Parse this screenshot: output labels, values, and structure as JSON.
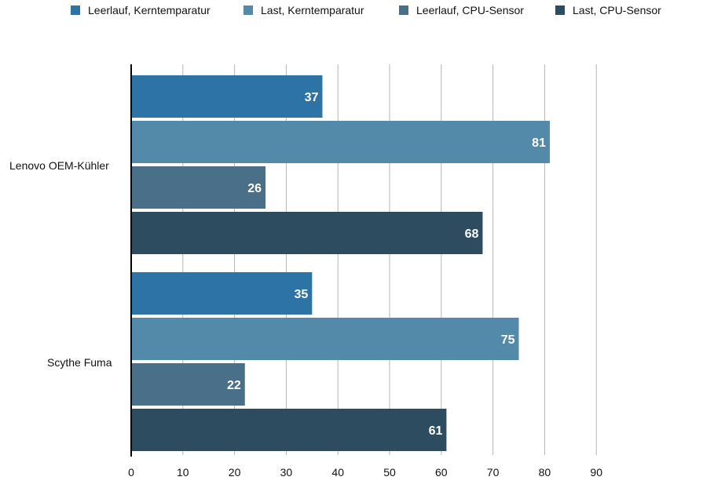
{
  "chart_data": {
    "type": "bar",
    "orientation": "horizontal",
    "categories": [
      "Lenovo OEM-Kühler",
      "Scythe Fuma"
    ],
    "series": [
      {
        "name": "Leerlauf, Kerntemparatur",
        "color": "#2e73a5",
        "values": [
          37,
          35
        ]
      },
      {
        "name": "Last, Kerntemparatur",
        "color": "#548aa9",
        "values": [
          81,
          75
        ]
      },
      {
        "name": "Leerlauf, CPU-Sensor",
        "color": "#4a7089",
        "values": [
          26,
          22
        ]
      },
      {
        "name": "Last, CPU-Sensor",
        "color": "#2d4c60",
        "values": [
          68,
          61
        ]
      }
    ],
    "xlim": [
      0,
      90
    ],
    "x_ticks": [
      "0",
      "10",
      "20",
      "30",
      "40",
      "50",
      "60",
      "70",
      "80",
      "90"
    ],
    "title": "",
    "xlabel": "",
    "ylabel": "",
    "grid": true,
    "legend_position": "top",
    "data_labels": true
  }
}
